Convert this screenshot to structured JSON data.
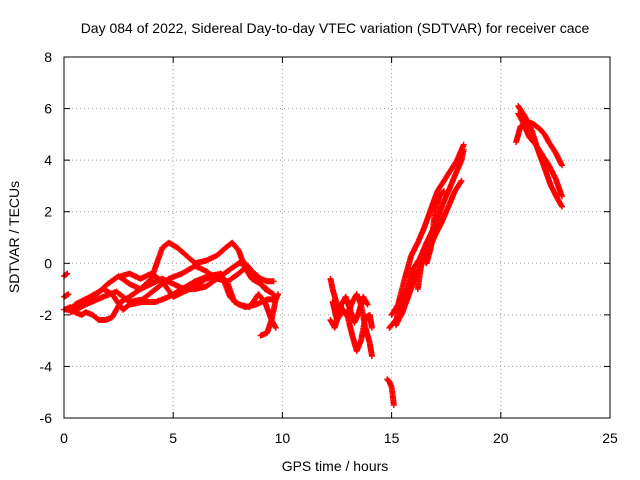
{
  "chart_data": {
    "type": "scatter",
    "title": "Day 084 of 2022, Sidereal Day-to-day VTEC variation (SDTVAR) for receiver cace",
    "xlabel": "GPS time / hours",
    "ylabel": "SDTVAR / TECUs",
    "xlim": [
      0,
      25
    ],
    "ylim": [
      -6,
      8
    ],
    "xticks": [
      0,
      5,
      10,
      15,
      20,
      25
    ],
    "yticks": [
      -6,
      -4,
      -2,
      0,
      2,
      4,
      6,
      8
    ],
    "grid": true,
    "marker": "+",
    "color": "#ff0000",
    "tracks": [
      [
        [
          0.0,
          -0.5
        ],
        [
          0.15,
          -0.4
        ]
      ],
      [
        [
          0.0,
          -1.3
        ],
        [
          0.2,
          -1.2
        ]
      ],
      [
        [
          0.0,
          -1.8
        ],
        [
          0.3,
          -1.7
        ],
        [
          0.5,
          -1.9
        ],
        [
          0.8,
          -2.0
        ],
        [
          1.0,
          -1.9
        ],
        [
          1.3,
          -2.0
        ],
        [
          1.6,
          -2.2
        ],
        [
          1.9,
          -2.2
        ],
        [
          2.2,
          -2.1
        ],
        [
          2.6,
          -1.5
        ],
        [
          3.0,
          -1.3
        ],
        [
          3.5,
          -1.0
        ],
        [
          4.0,
          -0.8
        ],
        [
          4.5,
          -0.6
        ],
        [
          5.0,
          -0.8
        ],
        [
          5.5,
          -1.0
        ],
        [
          6.0,
          -1.0
        ],
        [
          6.5,
          -0.9
        ],
        [
          7.0,
          -0.6
        ],
        [
          7.5,
          -0.3
        ],
        [
          8.0,
          0.0
        ],
        [
          8.3,
          0.0
        ],
        [
          8.6,
          -0.3
        ],
        [
          9.0,
          -0.6
        ],
        [
          9.3,
          -0.7
        ],
        [
          9.6,
          -0.7
        ]
      ],
      [
        [
          0.1,
          -1.8
        ],
        [
          0.5,
          -1.7
        ],
        [
          1.0,
          -1.5
        ],
        [
          1.5,
          -1.2
        ],
        [
          2.0,
          -0.8
        ],
        [
          2.5,
          -0.5
        ],
        [
          3.0,
          -0.8
        ],
        [
          3.5,
          -1.0
        ],
        [
          4.0,
          -0.6
        ],
        [
          4.5,
          0.6
        ],
        [
          4.8,
          0.8
        ],
        [
          5.2,
          0.6
        ],
        [
          5.6,
          0.3
        ],
        [
          6.0,
          0.0
        ],
        [
          6.5,
          0.1
        ],
        [
          7.0,
          0.3
        ],
        [
          7.4,
          0.6
        ],
        [
          7.7,
          0.8
        ],
        [
          8.0,
          0.5
        ],
        [
          8.3,
          -0.2
        ],
        [
          8.6,
          -0.6
        ],
        [
          9.0,
          -0.8
        ],
        [
          9.3,
          -1.0
        ]
      ],
      [
        [
          0.3,
          -1.9
        ],
        [
          1.0,
          -1.6
        ],
        [
          1.8,
          -1.3
        ],
        [
          2.4,
          -1.1
        ],
        [
          3.0,
          -1.5
        ],
        [
          3.6,
          -1.4
        ],
        [
          4.2,
          -1.0
        ],
        [
          4.8,
          -0.6
        ],
        [
          5.4,
          -0.4
        ],
        [
          6.0,
          -0.1
        ],
        [
          6.5,
          -0.3
        ],
        [
          7.0,
          -0.6
        ],
        [
          7.5,
          -0.7
        ],
        [
          8.0,
          -0.4
        ],
        [
          8.4,
          -0.1
        ],
        [
          8.8,
          -0.6
        ],
        [
          9.2,
          -1.0
        ],
        [
          9.6,
          -1.2
        ]
      ],
      [
        [
          0.5,
          -1.6
        ],
        [
          1.2,
          -1.3
        ],
        [
          1.8,
          -1.0
        ],
        [
          2.2,
          -1.2
        ],
        [
          2.7,
          -1.8
        ],
        [
          3.0,
          -1.6
        ],
        [
          3.6,
          -1.5
        ],
        [
          4.2,
          -1.5
        ],
        [
          4.8,
          -1.3
        ],
        [
          5.4,
          -1.0
        ],
        [
          6.0,
          -0.7
        ],
        [
          6.6,
          -0.5
        ],
        [
          7.2,
          -0.4
        ],
        [
          7.6,
          -1.3
        ],
        [
          8.0,
          -1.6
        ],
        [
          8.5,
          -1.7
        ],
        [
          8.9,
          -1.2
        ],
        [
          9.2,
          -1.5
        ],
        [
          9.5,
          -2.2
        ],
        [
          9.7,
          -2.5
        ]
      ],
      [
        [
          2.6,
          -0.5
        ],
        [
          3.0,
          -0.4
        ],
        [
          3.5,
          -0.6
        ],
        [
          4.0,
          -0.4
        ],
        [
          4.5,
          -0.7
        ],
        [
          5.0,
          -1.3
        ],
        [
          5.5,
          -1.1
        ],
        [
          6.0,
          -0.9
        ],
        [
          6.5,
          -0.6
        ],
        [
          7.0,
          -0.5
        ],
        [
          7.5,
          -0.8
        ],
        [
          7.8,
          -1.5
        ],
        [
          8.3,
          -1.7
        ],
        [
          8.8,
          -1.6
        ],
        [
          9.3,
          -1.4
        ],
        [
          9.6,
          -1.4
        ]
      ],
      [
        [
          9.0,
          -2.8
        ],
        [
          9.3,
          -2.7
        ],
        [
          9.5,
          -2.2
        ],
        [
          9.7,
          -1.4
        ],
        [
          9.8,
          -1.2
        ]
      ],
      [
        [
          12.2,
          -0.6
        ],
        [
          12.3,
          -1.0
        ],
        [
          12.5,
          -1.6
        ],
        [
          12.8,
          -1.9
        ],
        [
          13.0,
          -2.0
        ],
        [
          13.2,
          -1.5
        ],
        [
          13.4,
          -1.2
        ],
        [
          13.6,
          -1.6
        ],
        [
          13.8,
          -2.5
        ],
        [
          14.0,
          -3.1
        ],
        [
          14.1,
          -3.6
        ]
      ],
      [
        [
          12.3,
          -1.5
        ],
        [
          12.5,
          -2.2
        ],
        [
          12.8,
          -1.8
        ],
        [
          13.0,
          -2.1
        ],
        [
          13.2,
          -2.8
        ],
        [
          13.4,
          -3.4
        ],
        [
          13.6,
          -3.0
        ],
        [
          13.8,
          -2.1
        ],
        [
          14.0,
          -2.0
        ],
        [
          14.1,
          -2.5
        ]
      ],
      [
        [
          12.2,
          -2.2
        ],
        [
          12.4,
          -2.5
        ],
        [
          12.7,
          -1.6
        ],
        [
          12.9,
          -1.3
        ],
        [
          13.1,
          -1.8
        ],
        [
          13.3,
          -2.3
        ],
        [
          13.5,
          -1.9
        ],
        [
          13.7,
          -1.3
        ],
        [
          13.9,
          -1.6
        ]
      ],
      [
        [
          14.8,
          -4.5
        ],
        [
          14.9,
          -4.6
        ],
        [
          15.0,
          -4.8
        ],
        [
          15.05,
          -5.1
        ],
        [
          15.1,
          -5.5
        ]
      ],
      [
        [
          14.9,
          -2.5
        ],
        [
          15.2,
          -2.2
        ],
        [
          15.5,
          -1.5
        ],
        [
          15.8,
          -0.8
        ],
        [
          16.0,
          -0.2
        ],
        [
          16.3,
          0.2
        ],
        [
          16.6,
          0.8
        ],
        [
          17.0,
          1.5
        ],
        [
          17.3,
          2.2
        ],
        [
          17.6,
          2.8
        ],
        [
          17.9,
          3.4
        ],
        [
          18.2,
          4.0
        ],
        [
          18.3,
          4.4
        ]
      ],
      [
        [
          15.0,
          -2.0
        ],
        [
          15.3,
          -1.6
        ],
        [
          15.6,
          -0.6
        ],
        [
          15.9,
          0.3
        ],
        [
          16.2,
          0.8
        ],
        [
          16.5,
          1.4
        ],
        [
          16.8,
          2.1
        ],
        [
          17.1,
          2.8
        ],
        [
          17.4,
          3.2
        ],
        [
          17.7,
          3.6
        ],
        [
          18.0,
          4.0
        ],
        [
          18.3,
          4.6
        ]
      ],
      [
        [
          15.2,
          -2.4
        ],
        [
          15.5,
          -1.9
        ],
        [
          15.8,
          -1.2
        ],
        [
          16.1,
          -0.5
        ],
        [
          16.4,
          0.0
        ],
        [
          16.7,
          0.5
        ],
        [
          17.0,
          1.1
        ],
        [
          17.3,
          1.6
        ],
        [
          17.6,
          2.2
        ],
        [
          17.9,
          2.8
        ],
        [
          18.2,
          3.2
        ]
      ],
      [
        [
          16.2,
          -1.0
        ],
        [
          16.4,
          0.2
        ],
        [
          16.6,
          0.0
        ],
        [
          16.8,
          0.6
        ],
        [
          17.0,
          2.1
        ],
        [
          17.2,
          2.6
        ],
        [
          17.4,
          2.8
        ]
      ],
      [
        [
          20.7,
          4.7
        ],
        [
          20.9,
          5.3
        ],
        [
          21.2,
          5.5
        ],
        [
          21.5,
          5.4
        ],
        [
          21.8,
          5.2
        ],
        [
          22.0,
          5.0
        ],
        [
          22.2,
          4.7
        ],
        [
          22.5,
          4.3
        ],
        [
          22.8,
          3.8
        ]
      ],
      [
        [
          20.8,
          5.8
        ],
        [
          21.0,
          5.5
        ],
        [
          21.3,
          4.9
        ],
        [
          21.6,
          4.6
        ],
        [
          21.9,
          4.2
        ],
        [
          22.2,
          3.8
        ],
        [
          22.5,
          3.3
        ],
        [
          22.8,
          2.6
        ]
      ],
      [
        [
          20.8,
          6.1
        ],
        [
          21.1,
          5.7
        ],
        [
          21.4,
          5.2
        ],
        [
          21.7,
          4.4
        ],
        [
          22.0,
          3.7
        ],
        [
          22.3,
          3.0
        ],
        [
          22.6,
          2.5
        ],
        [
          22.8,
          2.2
        ]
      ]
    ]
  }
}
